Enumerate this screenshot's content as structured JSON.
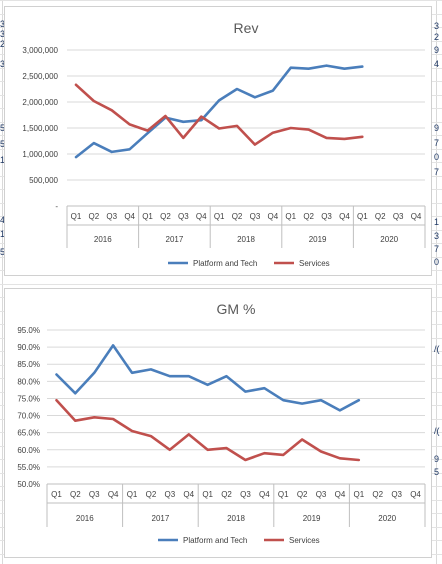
{
  "chart_data": [
    {
      "type": "line",
      "title": "Rev",
      "yticks": [
        "-",
        "500,000",
        "1,000,000",
        "1,500,000",
        "2,000,000",
        "2,500,000",
        "3,000,000"
      ],
      "ylim": [
        0,
        3000000
      ],
      "quarters": [
        "Q1",
        "Q2",
        "Q3",
        "Q4",
        "Q1",
        "Q2",
        "Q3",
        "Q4",
        "Q1",
        "Q2",
        "Q3",
        "Q4",
        "Q1",
        "Q2",
        "Q3",
        "Q4",
        "Q1",
        "Q2",
        "Q3",
        "Q4"
      ],
      "years": [
        "2016",
        "2017",
        "2018",
        "2019",
        "2020"
      ],
      "grid": true,
      "legend_position": "bottom",
      "series": [
        {
          "name": "Platform and Tech",
          "color": "#4a7ebb",
          "values": [
            940000,
            1210000,
            1040000,
            1090000,
            1400000,
            1700000,
            1620000,
            1650000,
            2030000,
            2250000,
            2090000,
            2220000,
            2660000,
            2640000,
            2700000,
            2640000,
            2680000,
            null,
            null,
            null
          ]
        },
        {
          "name": "Services",
          "color": "#c0504d",
          "values": [
            2330000,
            2020000,
            1840000,
            1570000,
            1450000,
            1730000,
            1310000,
            1720000,
            1490000,
            1540000,
            1180000,
            1410000,
            1500000,
            1470000,
            1310000,
            1290000,
            1330000,
            null,
            null,
            null
          ]
        }
      ]
    },
    {
      "type": "line",
      "title": "GM %",
      "yticks": [
        "50.0%",
        "55.0%",
        "60.0%",
        "65.0%",
        "70.0%",
        "75.0%",
        "80.0%",
        "85.0%",
        "90.0%",
        "95.0%"
      ],
      "ylim": [
        50,
        95
      ],
      "quarters": [
        "Q1",
        "Q2",
        "Q3",
        "Q4",
        "Q1",
        "Q2",
        "Q3",
        "Q4",
        "Q1",
        "Q2",
        "Q3",
        "Q4",
        "Q1",
        "Q2",
        "Q3",
        "Q4",
        "Q1",
        "Q2",
        "Q3",
        "Q4"
      ],
      "years": [
        "2016",
        "2017",
        "2018",
        "2019",
        "2020"
      ],
      "grid": true,
      "legend_position": "bottom",
      "series": [
        {
          "name": "Platform and Tech",
          "color": "#4a7ebb",
          "values": [
            82.0,
            76.5,
            82.5,
            90.5,
            82.5,
            83.5,
            81.5,
            81.5,
            79.0,
            81.5,
            77.0,
            78.0,
            74.5,
            73.5,
            74.5,
            71.5,
            74.5,
            null,
            null,
            null
          ]
        },
        {
          "name": "Services",
          "color": "#c0504d",
          "values": [
            74.5,
            68.5,
            69.5,
            69.0,
            65.5,
            64.0,
            60.0,
            64.5,
            60.0,
            60.5,
            57.0,
            59.0,
            58.5,
            63.0,
            59.5,
            57.5,
            57.0,
            null,
            null,
            null
          ]
        }
      ]
    }
  ],
  "edge_fragments": {
    "left": [
      "3",
      "3",
      "2",
      "3",
      "5",
      "5",
      "1",
      "4",
      "1",
      "5"
    ],
    "right": [
      "3",
      "2",
      "9",
      "4",
      "9",
      "7",
      "0",
      "7",
      "1",
      "3",
      "7",
      "0",
      "/(",
      "/(",
      "9",
      "5"
    ]
  }
}
